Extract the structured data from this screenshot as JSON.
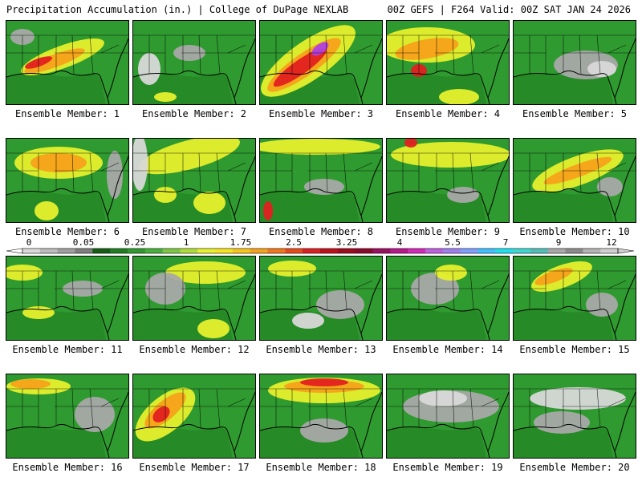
{
  "header": {
    "title_left": "Precipitation Accumulation (in.) | College of DuPage NEXLAB",
    "title_right": "00Z GEFS | F264 Valid: 00Z SAT JAN 24 2026"
  },
  "members": [
    {
      "label": "Ensemble Member: 1"
    },
    {
      "label": "Ensemble Member: 2"
    },
    {
      "label": "Ensemble Member: 3"
    },
    {
      "label": "Ensemble Member: 4"
    },
    {
      "label": "Ensemble Member: 5"
    },
    {
      "label": "Ensemble Member: 6"
    },
    {
      "label": "Ensemble Member: 7"
    },
    {
      "label": "Ensemble Member: 8"
    },
    {
      "label": "Ensemble Member: 9"
    },
    {
      "label": "Ensemble Member: 10"
    },
    {
      "label": "Ensemble Member: 11"
    },
    {
      "label": "Ensemble Member: 12"
    },
    {
      "label": "Ensemble Member: 13"
    },
    {
      "label": "Ensemble Member: 14"
    },
    {
      "label": "Ensemble Member: 15"
    },
    {
      "label": "Ensemble Member: 16"
    },
    {
      "label": "Ensemble Member: 17"
    },
    {
      "label": "Ensemble Member: 18"
    },
    {
      "label": "Ensemble Member: 19"
    },
    {
      "label": "Ensemble Member: 20"
    }
  ],
  "colorbar": {
    "tick_labels": [
      "0",
      "0.05",
      "0.25",
      "1",
      "1.75",
      "2.5",
      "3.25",
      "4",
      "5.5",
      "7",
      "9",
      "12"
    ],
    "colors": [
      "#d9d9d9",
      "#bdbdbd",
      "#a0a0a0",
      "#7f7f7f",
      "#145f14",
      "#1f7f1f",
      "#2f9a2f",
      "#47b03a",
      "#7cc843",
      "#b0dc3a",
      "#e6f02c",
      "#f7e31c",
      "#f8c51a",
      "#f6a21a",
      "#f0781a",
      "#e84a1a",
      "#dc1f1f",
      "#c0101a",
      "#a00b1e",
      "#8b0a2a",
      "#9b1060",
      "#b8188c",
      "#d32ab8",
      "#c060e0",
      "#a080f0",
      "#80a0ff",
      "#40c0ff",
      "#20e0f0",
      "#40d8d0",
      "#50c0b8",
      "#a8a8a8",
      "#8c8c8c",
      "#b4b4b4",
      "#d0d0d0"
    ]
  },
  "map_colors": {
    "green_dark": "#1f7f1f",
    "green": "#2f9a2f",
    "green_light": "#7cc843",
    "yellow": "#e6f02c",
    "orange": "#f6a21a",
    "red": "#e22020",
    "purple": "#b040e0",
    "gray": "#a8a8a8",
    "gray_light": "#d8d8d8"
  }
}
